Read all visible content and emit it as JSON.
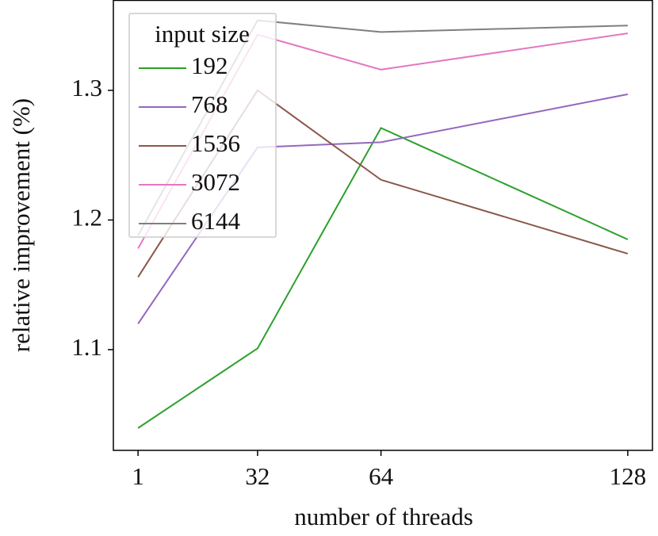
{
  "chart_data": {
    "type": "line",
    "x_label": "number of threads",
    "y_label": "relative improvement (%)",
    "x": [
      1,
      32,
      64,
      128
    ],
    "xlim": [
      -5.4,
      134.4
    ],
    "xticks": [
      1,
      32,
      64,
      128
    ],
    "ylim": [
      1.0223,
      1.3697
    ],
    "yticks": [
      1.1,
      1.2,
      1.3
    ],
    "grid": false,
    "legend_title": "input size",
    "legend_loc": "upper left",
    "series": [
      {
        "name": "192",
        "color": "#2ca02c",
        "values": [
          1.0395,
          1.101,
          1.271,
          1.185
        ]
      },
      {
        "name": "768",
        "color": "#9467bd",
        "values": [
          1.12,
          1.256,
          1.26,
          1.297
        ]
      },
      {
        "name": "1536",
        "color": "#8c564b",
        "values": [
          1.156,
          1.3,
          1.231,
          1.174
        ]
      },
      {
        "name": "3072",
        "color": "#e377c2",
        "values": [
          1.178,
          1.343,
          1.316,
          1.344
        ]
      },
      {
        "name": "6144",
        "color": "#7f7f7f",
        "values": [
          1.188,
          1.354,
          1.345,
          1.35
        ]
      }
    ]
  }
}
